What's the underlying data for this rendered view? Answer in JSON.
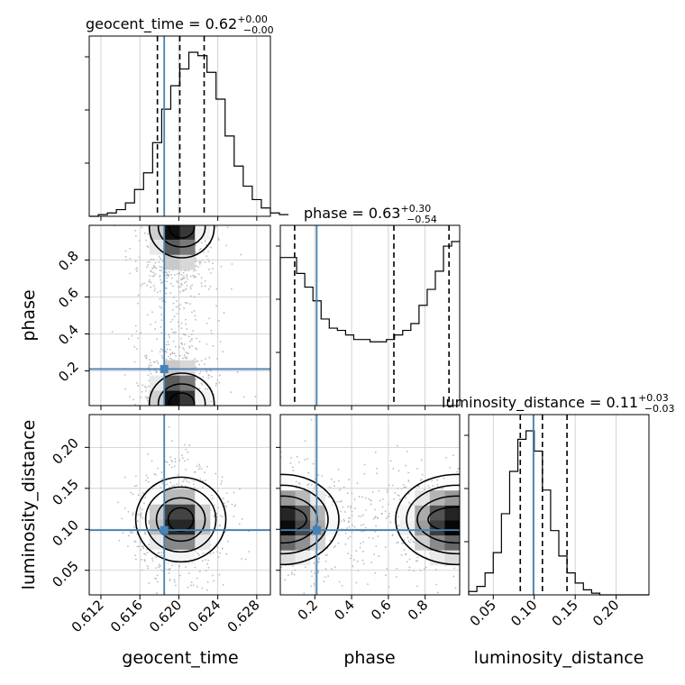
{
  "chart_data": {
    "type": "corner",
    "parameters": [
      "geocent_time",
      "phase",
      "luminosity_distance"
    ],
    "axis_labels": [
      "geocent_time",
      "phase",
      "luminosity_distance"
    ],
    "titles": [
      {
        "name": "geocent_time",
        "median": "0.62",
        "plus": "+0.00",
        "minus": "−0.00"
      },
      {
        "name": "phase",
        "median": "0.63",
        "plus": "+0.30",
        "minus": "−0.54"
      },
      {
        "name": "luminosity_distance",
        "median": "0.11",
        "plus": "+0.03",
        "minus": "−0.03"
      }
    ],
    "ranges": [
      [
        0.6108,
        0.6294
      ],
      [
        0.012,
        0.988
      ],
      [
        0.02,
        0.24
      ]
    ],
    "ticks": [
      [
        "0.612",
        "0.616",
        "0.620",
        "0.624",
        "0.628"
      ],
      [
        "0.2",
        "0.4",
        "0.6",
        "0.8"
      ],
      [
        "0.05",
        "0.10",
        "0.15",
        "0.20"
      ]
    ],
    "truths": [
      0.6185,
      0.21,
      0.099
    ],
    "truth_color": "#4682b4",
    "quantiles": [
      [
        0.6178,
        0.6201,
        0.6226
      ],
      [
        0.09,
        0.63,
        0.93
      ],
      [
        0.083,
        0.11,
        0.14
      ]
    ],
    "hist_1d": [
      {
        "param": "geocent_time",
        "edges_start": 0.6108,
        "bin_width": 0.00093,
        "counts": [
          0,
          1,
          2,
          4,
          8,
          16,
          26,
          44,
          64,
          78,
          88,
          98,
          96,
          86,
          70,
          48,
          30,
          18,
          10,
          5,
          2,
          1
        ]
      },
      {
        "param": "phase",
        "edges_start": 0.012,
        "bin_width": 0.0444,
        "counts": [
          65,
          65,
          58,
          52,
          46,
          38,
          34,
          33,
          31,
          29,
          29,
          28,
          28,
          29,
          31,
          33,
          36,
          44,
          51,
          59,
          70,
          72
        ]
      },
      {
        "param": "luminosity_distance",
        "edges_start": 0.02,
        "bin_width": 0.01,
        "counts": [
          2,
          5,
          13,
          25,
          48,
          73,
          92,
          97,
          85,
          62,
          38,
          23,
          13,
          7,
          3,
          1,
          0,
          0,
          0,
          0,
          0,
          0
        ]
      }
    ],
    "hist_2d": [
      {
        "x": "geocent_time",
        "y": "phase",
        "description": "bimodal density with peaks near phase 0.05 and 0.95 at geocent_time 0.620"
      },
      {
        "x": "geocent_time",
        "y": "luminosity_distance",
        "peak": [
          0.6202,
          0.112
        ]
      },
      {
        "x": "phase",
        "y": "luminosity_distance",
        "description": "bimodal density with peaks near phase 0.02 and 0.97 at luminosity_distance 0.11"
      }
    ],
    "grid": true
  }
}
